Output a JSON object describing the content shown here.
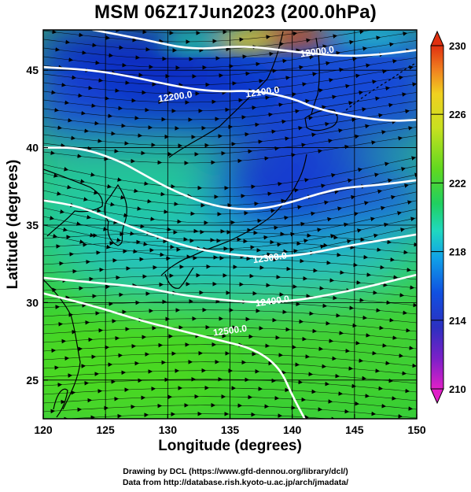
{
  "title": "MSM 06Z17Jun2023 (200.0hPa)",
  "x_axis": {
    "label": "Longitude (degrees)",
    "min": 120,
    "max": 150,
    "ticks": [
      120,
      125,
      130,
      135,
      140,
      145,
      150
    ],
    "tick_labels": [
      "120",
      "125",
      "130",
      "135",
      "140",
      "145",
      "150"
    ]
  },
  "y_axis": {
    "label": "Latitude (degrees)",
    "min": 22.5,
    "max": 47.6,
    "ticks": [
      25,
      30,
      35,
      40,
      45
    ],
    "tick_labels": [
      "25",
      "30",
      "35",
      "40",
      "45"
    ]
  },
  "colorbar": {
    "min": 210,
    "max": 230,
    "tick_labels": [
      "210",
      "214",
      "218",
      "222",
      "226",
      "230"
    ],
    "tick_values": [
      210,
      214,
      218,
      222,
      226,
      230
    ],
    "colors": [
      "#e020c8",
      "#7a20c8",
      "#2c30c0",
      "#1050e0",
      "#10a0e8",
      "#20d8c0",
      "#20d060",
      "#60d820",
      "#c8e020",
      "#f0d020",
      "#f08020",
      "#e03010"
    ]
  },
  "contours": [
    {
      "label": "12000.0",
      "points": [
        [
          124,
          47.6
        ],
        [
          128,
          47.0
        ],
        [
          132,
          46.3
        ],
        [
          136,
          46.6
        ],
        [
          140,
          46.2
        ],
        [
          144,
          45.9
        ],
        [
          147,
          46.0
        ],
        [
          150,
          46.3
        ]
      ]
    },
    {
      "label": "12100.0",
      "points": [
        [
          120,
          45.2
        ],
        [
          124,
          45.0
        ],
        [
          127,
          44.6
        ],
        [
          131,
          43.9
        ],
        [
          134,
          43.6
        ],
        [
          137,
          43.7
        ],
        [
          140,
          43.2
        ],
        [
          142,
          42.5
        ],
        [
          145,
          42.0
        ],
        [
          148,
          41.7
        ],
        [
          150,
          41.8
        ]
      ]
    },
    {
      "label": "12200.0",
      "points": [
        [
          120,
          40.0
        ],
        [
          123,
          40.0
        ],
        [
          126,
          39.2
        ],
        [
          128,
          38.3
        ],
        [
          130,
          37.4
        ],
        [
          132,
          36.7
        ],
        [
          134,
          36.2
        ],
        [
          136,
          36.0
        ],
        [
          138,
          36.1
        ],
        [
          140,
          36.5
        ],
        [
          142,
          37.0
        ],
        [
          144,
          37.4
        ],
        [
          147,
          37.6
        ],
        [
          150,
          37.9
        ]
      ]
    },
    {
      "label": "12300.0",
      "points": [
        [
          120,
          36.6
        ],
        [
          123,
          36.2
        ],
        [
          126,
          35.2
        ],
        [
          129,
          34.3
        ],
        [
          132,
          33.5
        ],
        [
          135,
          33.1
        ],
        [
          138,
          32.9
        ],
        [
          141,
          33.1
        ],
        [
          144,
          33.6
        ],
        [
          147,
          34.0
        ],
        [
          150,
          34.4
        ]
      ]
    },
    {
      "label": "12400.0",
      "points": [
        [
          120,
          31.6
        ],
        [
          124,
          31.3
        ],
        [
          128,
          31.0
        ],
        [
          131,
          30.5
        ],
        [
          134,
          30.2
        ],
        [
          137,
          30.0
        ],
        [
          140,
          30.1
        ],
        [
          143,
          30.5
        ],
        [
          146,
          31.0
        ],
        [
          150,
          31.8
        ]
      ]
    },
    {
      "label": "12500.0",
      "points": [
        [
          120,
          30.6
        ],
        [
          124,
          29.8
        ],
        [
          128,
          28.8
        ],
        [
          131,
          28.2
        ],
        [
          134,
          27.6
        ],
        [
          137,
          27.0
        ],
        [
          139,
          25.8
        ],
        [
          140,
          24.0
        ],
        [
          141,
          22.5
        ]
      ]
    }
  ],
  "contour_labels": [
    {
      "text": "12000.0",
      "lon": 142.0,
      "lat": 46.2
    },
    {
      "text": "12100.0",
      "lon": 137.6,
      "lat": 43.6
    },
    {
      "text": "12200.0",
      "lon": 130.6,
      "lat": 43.3
    },
    {
      "text": "12300.0",
      "lon": 138.2,
      "lat": 32.9
    },
    {
      "text": "12400.0",
      "lon": 138.4,
      "lat": 30.1
    },
    {
      "text": "12500.0",
      "lon": 135.0,
      "lat": 28.2
    }
  ],
  "credits": {
    "line1": "Drawing by DCL (https://www.gfd-dennou.org/library/dcl/)",
    "line2": "Data from http://database.rish.kyoto-u.ac.jp/arch/jmadata/"
  }
}
